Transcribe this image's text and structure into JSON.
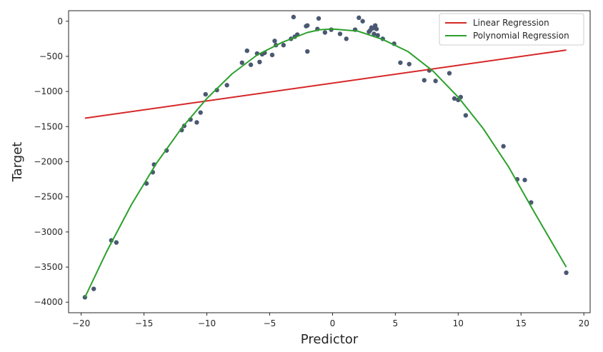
{
  "chart_data": {
    "type": "scatter",
    "title": "",
    "xlabel": "Predictor",
    "ylabel": "Target",
    "xlim": [
      -21.0,
      20.5
    ],
    "ylim": [
      -4150,
      150
    ],
    "xticks": [
      -20,
      -15,
      -10,
      -5,
      0,
      5,
      10,
      15,
      20
    ],
    "yticks": [
      0,
      -500,
      -1000,
      -1500,
      -2000,
      -2500,
      -3000,
      -3500,
      -4000
    ],
    "xtick_labels": [
      "−20",
      "−15",
      "−10",
      "−5",
      "0",
      "5",
      "10",
      "15",
      "20"
    ],
    "ytick_labels": [
      "0",
      "−500",
      "−1000",
      "−1500",
      "−2000",
      "−2500",
      "−3000",
      "−3500",
      "−4000"
    ],
    "grid": false,
    "legend_position": "top-right",
    "colors": {
      "points": "#4a5872",
      "linear": "#d62728",
      "polynomial": "#2ca02c",
      "axes": "#262626"
    },
    "scatter": {
      "x": [
        -19.7,
        -19.0,
        -17.6,
        -17.2,
        -14.8,
        -14.3,
        -14.2,
        -13.2,
        -12.0,
        -11.8,
        -11.3,
        -10.8,
        -10.5,
        -10.1,
        -9.2,
        -8.4,
        -7.2,
        -6.8,
        -6.5,
        -6.0,
        -5.8,
        -5.6,
        -5.4,
        -4.8,
        -4.6,
        -4.5,
        -3.9,
        -3.3,
        -3.1,
        -3.0,
        -2.8,
        -2.1,
        -2.0,
        -2.0,
        -1.2,
        -1.1,
        -0.6,
        -0.1,
        0.6,
        1.1,
        1.8,
        2.1,
        2.4,
        2.9,
        3.0,
        3.1,
        3.2,
        3.3,
        3.4,
        3.5,
        3.6,
        4.0,
        4.9,
        5.4,
        6.1,
        7.3,
        7.7,
        8.2,
        9.3,
        9.7,
        10.0,
        10.2,
        10.6,
        13.6,
        14.7,
        15.3,
        15.8,
        18.6
      ],
      "y": [
        -3930,
        -3810,
        -3120,
        -3150,
        -2310,
        -2150,
        -2040,
        -1840,
        -1550,
        -1490,
        -1400,
        -1440,
        -1300,
        -1040,
        -980,
        -910,
        -590,
        -420,
        -620,
        -460,
        -580,
        -470,
        -450,
        -480,
        -280,
        -340,
        -340,
        -250,
        60,
        -220,
        -190,
        -70,
        -430,
        -60,
        -110,
        40,
        -160,
        -120,
        -180,
        -250,
        -120,
        50,
        0,
        -150,
        -130,
        -90,
        -100,
        -180,
        -60,
        -110,
        -200,
        -250,
        -320,
        -590,
        -610,
        -840,
        -700,
        -850,
        -740,
        -1100,
        -1120,
        -1080,
        -1340,
        -1780,
        -2250,
        -2260,
        -2580,
        -3580
      ]
    },
    "series": [
      {
        "name": "Linear Regression",
        "type": "line",
        "x": [
          -19.7,
          18.6
        ],
        "y": [
          -1380,
          -410
        ]
      },
      {
        "name": "Polynomial Regression",
        "type": "line",
        "x": [
          -19.7,
          -18,
          -16,
          -14,
          -12,
          -10,
          -8,
          -6,
          -4,
          -2,
          -1,
          0,
          2,
          4,
          6,
          8,
          10,
          12,
          14,
          16,
          18.6
        ],
        "y": [
          -3930,
          -3290,
          -2610,
          -2020,
          -1520,
          -1100,
          -750,
          -480,
          -300,
          -160,
          -120,
          -110,
          -140,
          -260,
          -430,
          -710,
          -1080,
          -1530,
          -2070,
          -2700,
          -3500
        ]
      }
    ],
    "legend": [
      "Linear Regression",
      "Polynomial Regression"
    ]
  }
}
